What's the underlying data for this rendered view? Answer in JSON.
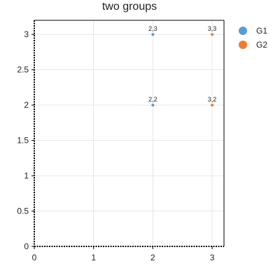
{
  "chart_data": {
    "type": "scatter",
    "title": "two groups",
    "xlabel": "",
    "ylabel": "",
    "xlim": [
      0,
      3.2
    ],
    "ylim": [
      0,
      3.2
    ],
    "x_ticks": [
      0,
      1,
      2,
      3
    ],
    "y_ticks": [
      0,
      0.5,
      1,
      1.5,
      2,
      2.5,
      3
    ],
    "x_tick_labels": [
      "0",
      "1",
      "2",
      "3"
    ],
    "y_tick_labels": [
      "0",
      "0.5",
      "1",
      "1.5",
      "2",
      "2.5",
      "3"
    ],
    "grid": true,
    "legend_position": "top-right outside",
    "series": [
      {
        "name": "G1",
        "color": "#5b9bd5",
        "points": [
          {
            "x": 2,
            "y": 3,
            "label": "2,3"
          },
          {
            "x": 2,
            "y": 2,
            "label": "2,2"
          }
        ]
      },
      {
        "name": "G2",
        "color": "#ed7d31",
        "points": [
          {
            "x": 3,
            "y": 3,
            "label": "3,3"
          },
          {
            "x": 3,
            "y": 2,
            "label": "3,2"
          }
        ]
      }
    ]
  }
}
